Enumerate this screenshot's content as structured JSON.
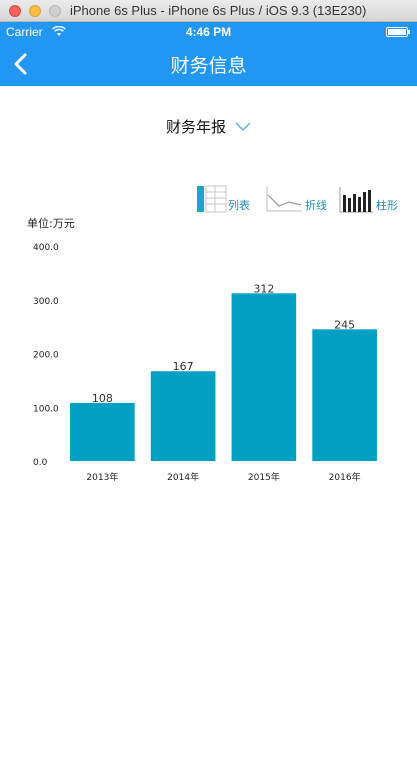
{
  "window": {
    "title": "iPhone 6s Plus - iPhone 6s Plus / iOS 9.3 (13E230)"
  },
  "status_bar": {
    "carrier": "Carrier",
    "time": "4:46 PM"
  },
  "nav": {
    "title": "财务信息"
  },
  "report_select": {
    "label": "财务年报"
  },
  "view_switch": {
    "table": "列表",
    "line": "折线",
    "bar": "柱形"
  },
  "colors": {
    "primary": "#2196f3",
    "bar": "#00a0c2",
    "switch_text": "#1f8bbd"
  },
  "chart_data": {
    "type": "bar",
    "unit_label": "单位:万元",
    "categories": [
      "2013年",
      "2014年",
      "2015年",
      "2016年"
    ],
    "values": [
      108,
      167,
      312,
      245
    ],
    "ylim": [
      0,
      400
    ],
    "yticks": [
      "0.0",
      "100.0",
      "200.0",
      "300.0",
      "400.0"
    ],
    "grid": false,
    "legend": "none"
  }
}
